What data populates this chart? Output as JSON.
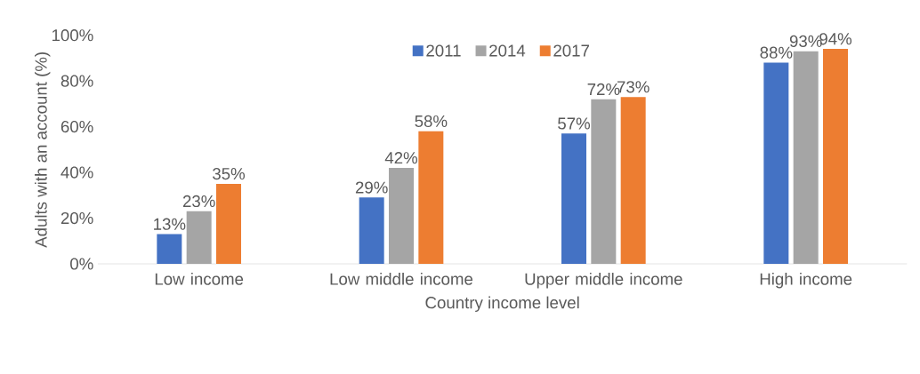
{
  "chart_data": {
    "type": "bar",
    "xlabel": "Country income level",
    "ylabel": "Adults with an account (%)",
    "categories": [
      "Low income",
      "Low middle income",
      "Upper middle income",
      "High income"
    ],
    "series": [
      {
        "name": "2011",
        "color": "#4472c4",
        "values": [
          13,
          29,
          57,
          88
        ],
        "value_labels": [
          "13%",
          "29%",
          "57%",
          "88%"
        ]
      },
      {
        "name": "2014",
        "color": "#a5a5a5",
        "values": [
          23,
          42,
          72,
          93
        ],
        "value_labels": [
          "23%",
          "42%",
          "72%",
          "93%"
        ]
      },
      {
        "name": "2017",
        "color": "#ed7d31",
        "values": [
          35,
          58,
          73,
          94
        ],
        "value_labels": [
          "35%",
          "58%",
          "73%",
          "94%"
        ]
      }
    ],
    "ylim": [
      0,
      100
    ],
    "yticks": [
      {
        "value": 0,
        "label": "0%"
      },
      {
        "value": 20,
        "label": "20%"
      },
      {
        "value": 40,
        "label": "40%"
      },
      {
        "value": 60,
        "label": "60%"
      },
      {
        "value": 80,
        "label": "80%"
      },
      {
        "value": 100,
        "label": "100%"
      }
    ],
    "legend": "top"
  }
}
